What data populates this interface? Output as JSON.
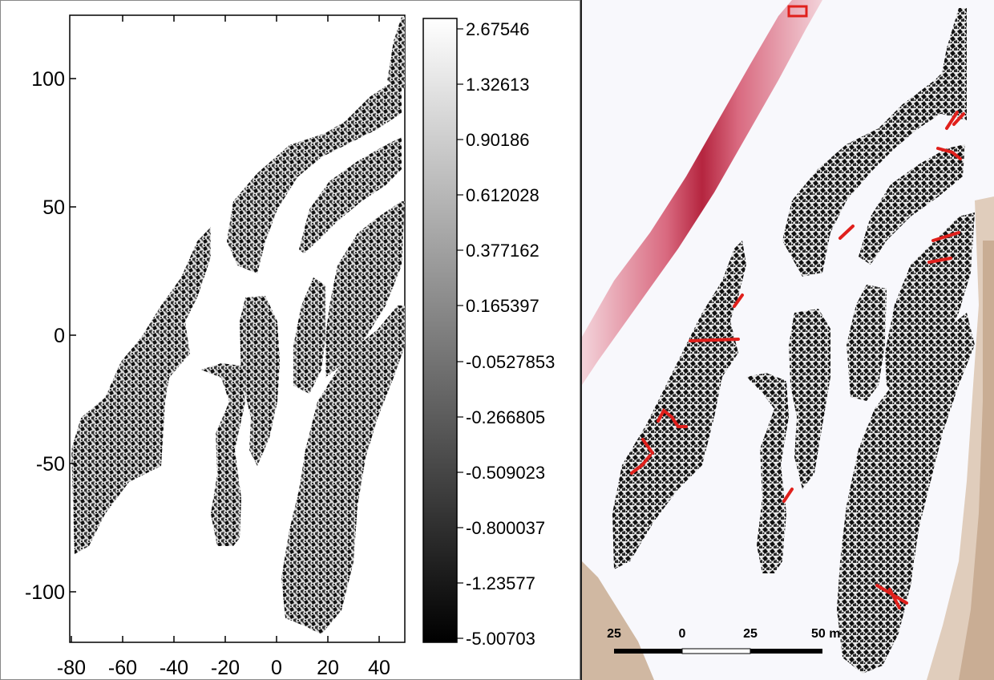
{
  "left_map": {
    "x_ticks": [
      "-80",
      "-60",
      "-40",
      "-20",
      "0",
      "20",
      "40"
    ],
    "y_ticks": [
      "100",
      "50",
      "0",
      "-50",
      "-100"
    ],
    "x_range": [
      -80,
      50
    ],
    "y_range": [
      -120,
      125
    ]
  },
  "colorbar": {
    "labels": [
      "2.67546",
      "1.32613",
      "0.90186",
      "0.612028",
      "0.377162",
      "0.165397",
      "-0.0527853",
      "-0.266805",
      "-0.509023",
      "-0.800037",
      "-1.23577",
      "-5.00703"
    ],
    "gradient": [
      "#ffffff",
      "#000000"
    ]
  },
  "right_map": {
    "scale_labels": [
      "25",
      "0",
      "25",
      "50 m"
    ],
    "colors": {
      "trail": "#c8384f",
      "shore": "#b9987a",
      "annotation": "#e0201c"
    }
  }
}
